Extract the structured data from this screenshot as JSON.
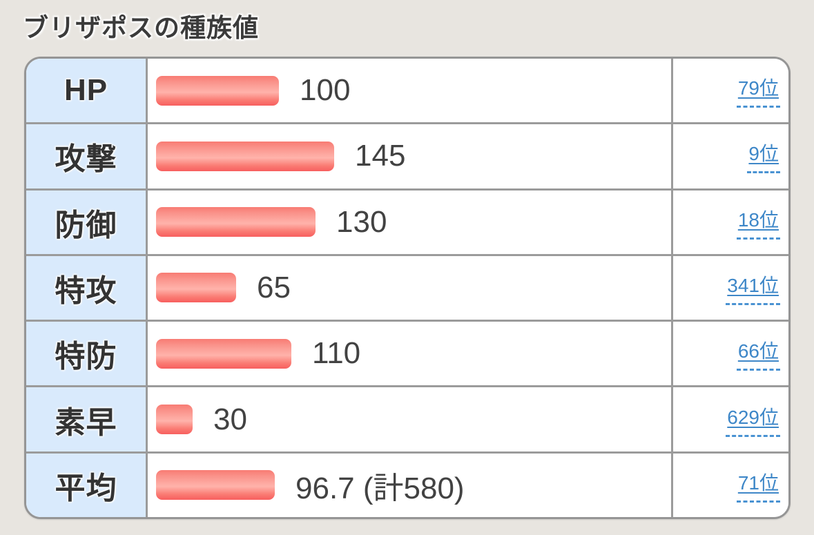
{
  "title": "ブリザポスの種族値",
  "colors": {
    "page_background": "#e8e5e0",
    "bar_red": "#f8736b",
    "bar_highlight": "#ffb3ab",
    "label_cell_blue": "#d9eafc",
    "link_blue": "#3e87c8",
    "border_gray": "#9b9b9b",
    "text_dark": "#3b3b3b"
  },
  "chart_data": {
    "type": "bar",
    "orientation": "horizontal",
    "title": "ブリザポスの種族値",
    "categories": [
      "HP",
      "攻撃",
      "防御",
      "特攻",
      "特防",
      "素早",
      "平均"
    ],
    "values": [
      100,
      145,
      130,
      65,
      110,
      30,
      96.7
    ],
    "value_labels": [
      "100",
      "145",
      "130",
      "65",
      "110",
      "30",
      "96.7 (計580)"
    ],
    "ranks": [
      "79位",
      "9位",
      "18位",
      "341位",
      "66位",
      "629位",
      "71位"
    ],
    "total": 580,
    "average": 96.7,
    "bar_color": "#f8736b",
    "grid": false,
    "legend": false
  }
}
